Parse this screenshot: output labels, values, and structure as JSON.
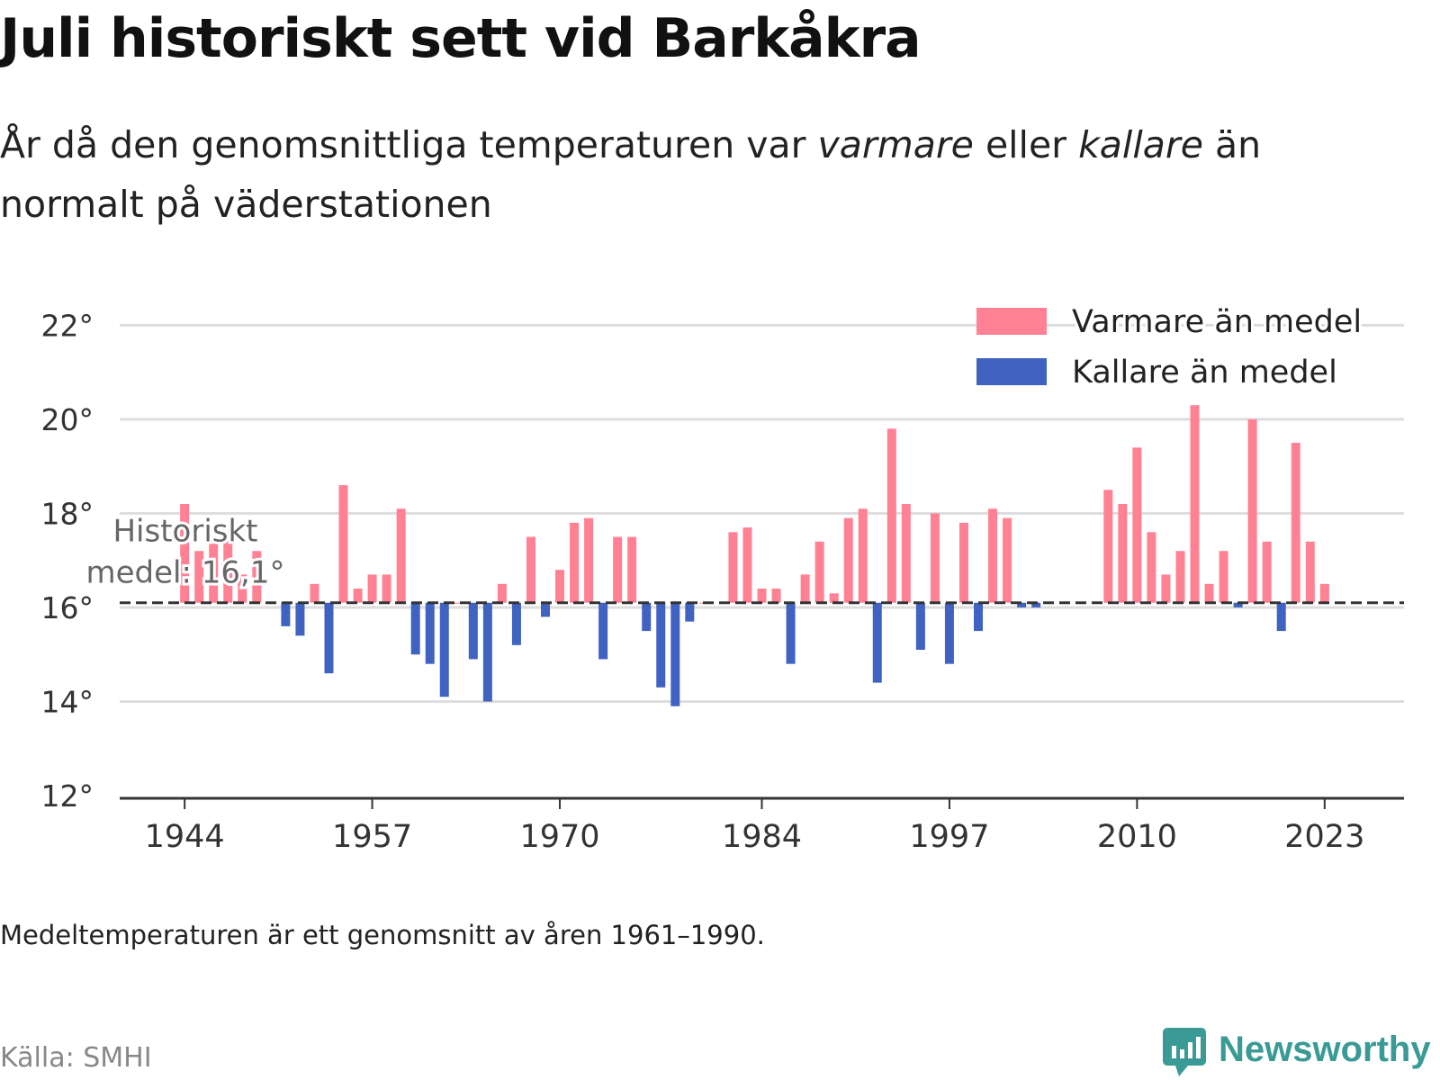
{
  "header": {
    "title": "Juli historiskt sett vid Barkåkra",
    "subtitle_pre": "År då den genomsnittliga temperaturen var ",
    "subtitle_warm": "varmare",
    "subtitle_mid": " eller ",
    "subtitle_cold": "kallare",
    "subtitle_post": " än normalt på väderstationen"
  },
  "footer": {
    "note": "Medeltemperaturen är ett genomsnitt av åren 1961–1990.",
    "source": "Källa: SMHI",
    "brand": "Newsworthy"
  },
  "colors": {
    "warm": "#ff8193",
    "cold": "#4063c1",
    "grid": "#dddddd",
    "axis": "#333333",
    "brand": "#3a9a96"
  },
  "chart_data": {
    "type": "bar",
    "baseline": 16.1,
    "baseline_label_line1": "Historiskt",
    "baseline_label_line2": "medel: 16,1°",
    "ylim": [
      12,
      22.6
    ],
    "y_ticks": [
      12,
      14,
      16,
      18,
      20,
      22
    ],
    "y_tick_labels": [
      "12°",
      "14°",
      "16°",
      "18°",
      "20°",
      "22°"
    ],
    "x_ticks": [
      1944,
      1957,
      1970,
      1984,
      1997,
      2010,
      2023
    ],
    "x_tick_labels": [
      "1944",
      "1957",
      "1970",
      "1984",
      "1997",
      "2010",
      "2023"
    ],
    "xlim": [
      1939.5,
      2028.5
    ],
    "grid": true,
    "legend_position": "top-right",
    "series": [
      {
        "name": "Varmare än medel",
        "color": "#ff8193"
      },
      {
        "name": "Kallare än medel",
        "color": "#4063c1"
      }
    ],
    "x": [
      1944,
      1945,
      1946,
      1947,
      1948,
      1949,
      1951,
      1952,
      1953,
      1954,
      1955,
      1956,
      1957,
      1958,
      1959,
      1960,
      1961,
      1962,
      1963,
      1964,
      1965,
      1966,
      1967,
      1968,
      1969,
      1970,
      1971,
      1972,
      1973,
      1974,
      1975,
      1976,
      1977,
      1978,
      1979,
      1980,
      1982,
      1983,
      1984,
      1985,
      1986,
      1987,
      1988,
      1989,
      1990,
      1991,
      1992,
      1993,
      1994,
      1995,
      1996,
      1997,
      1998,
      1999,
      2000,
      2001,
      2002,
      2003,
      2008,
      2009,
      2010,
      2011,
      2012,
      2013,
      2014,
      2015,
      2016,
      2017,
      2018,
      2019,
      2020,
      2021,
      2022,
      2023
    ],
    "values": [
      18.2,
      17.2,
      17.5,
      17.7,
      16.7,
      17.2,
      15.6,
      15.4,
      16.5,
      14.6,
      18.6,
      16.4,
      16.7,
      16.7,
      18.1,
      15.0,
      14.8,
      14.1,
      16.1,
      14.9,
      14.0,
      16.5,
      15.2,
      17.5,
      15.8,
      16.8,
      17.8,
      17.9,
      14.9,
      17.5,
      17.5,
      15.5,
      14.3,
      13.9,
      15.7,
      16.1,
      17.6,
      17.7,
      16.4,
      16.4,
      14.8,
      16.7,
      17.4,
      16.3,
      17.9,
      18.1,
      14.4,
      19.8,
      18.2,
      15.1,
      18.0,
      14.8,
      17.8,
      15.5,
      18.1,
      17.9,
      16.0,
      16.0,
      18.5,
      18.2,
      19.4,
      17.6,
      16.7,
      17.2,
      20.3,
      16.5,
      17.2,
      16.0,
      20.0,
      17.4,
      15.5,
      19.5,
      17.4,
      16.5
    ]
  }
}
